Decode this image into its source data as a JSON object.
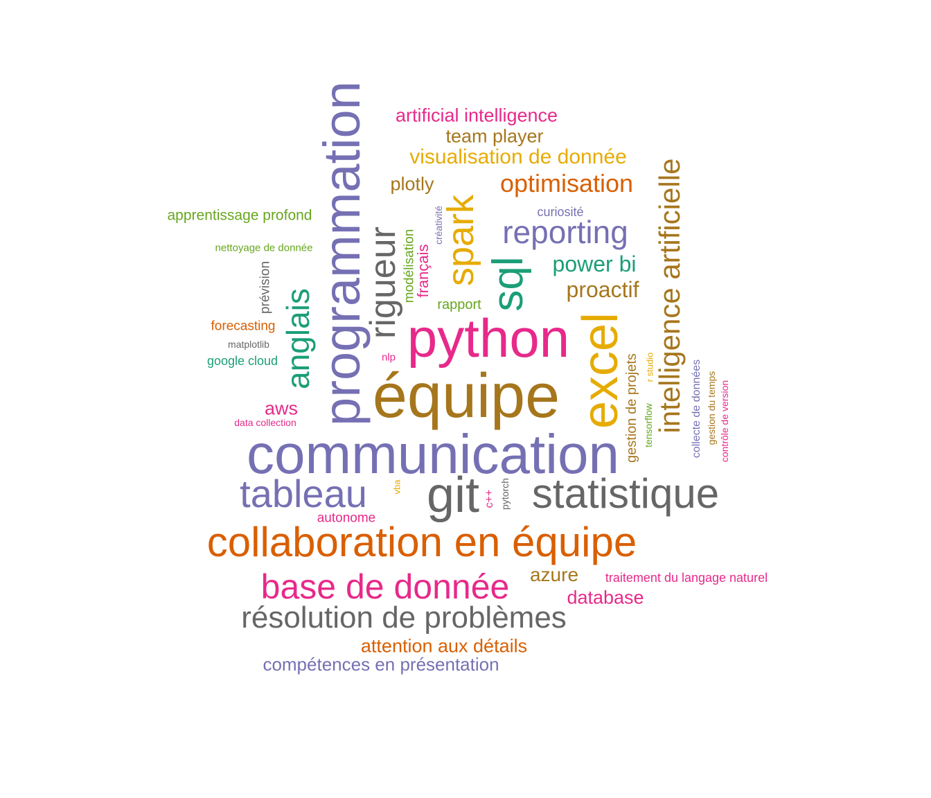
{
  "word_cloud": {
    "words": [
      {
        "text": "communication",
        "color": "#7570b3",
        "weight": 1.0
      },
      {
        "text": "équipe",
        "color": "#a6761d",
        "weight": 1.0
      },
      {
        "text": "python",
        "color": "#e7298a",
        "weight": 0.9
      },
      {
        "text": "programmation",
        "color": "#7570b3",
        "weight": 0.85
      },
      {
        "text": "collaboration en équipe",
        "color": "#d95f02",
        "weight": 0.8
      },
      {
        "text": "statistique",
        "color": "#666666",
        "weight": 0.75
      },
      {
        "text": "git",
        "color": "#666666",
        "weight": 0.85
      },
      {
        "text": "excel",
        "color": "#e6ab02",
        "weight": 0.8
      },
      {
        "text": "tableau",
        "color": "#7570b3",
        "weight": 0.7
      },
      {
        "text": "base de donnée",
        "color": "#e7298a",
        "weight": 0.65
      },
      {
        "text": "résolution de problèmes",
        "color": "#666666",
        "weight": 0.55
      },
      {
        "text": "intelligence artificielle",
        "color": "#a6761d",
        "weight": 0.55
      },
      {
        "text": "rigueur",
        "color": "#666666",
        "weight": 0.6
      },
      {
        "text": "sql",
        "color": "#1b9e77",
        "weight": 0.7
      },
      {
        "text": "spark",
        "color": "#e6ab02",
        "weight": 0.65
      },
      {
        "text": "anglais",
        "color": "#1b9e77",
        "weight": 0.55
      },
      {
        "text": "reporting",
        "color": "#7570b3",
        "weight": 0.5
      },
      {
        "text": "optimisation",
        "color": "#d95f02",
        "weight": 0.4
      },
      {
        "text": "power bi",
        "color": "#1b9e77",
        "weight": 0.35
      },
      {
        "text": "proactif",
        "color": "#a6761d",
        "weight": 0.35
      },
      {
        "text": "visualisation de donnée",
        "color": "#e6ab02",
        "weight": 0.3
      },
      {
        "text": "artificial intelligence",
        "color": "#e7298a",
        "weight": 0.3
      },
      {
        "text": "team player",
        "color": "#a6761d",
        "weight": 0.3
      },
      {
        "text": "plotly",
        "color": "#a6761d",
        "weight": 0.3
      },
      {
        "text": "azure",
        "color": "#a6761d",
        "weight": 0.3
      },
      {
        "text": "database",
        "color": "#e7298a",
        "weight": 0.3
      },
      {
        "text": "attention aux détails",
        "color": "#d95f02",
        "weight": 0.28
      },
      {
        "text": "compétences en présentation",
        "color": "#7570b3",
        "weight": 0.28
      },
      {
        "text": "aws",
        "color": "#e7298a",
        "weight": 0.3
      },
      {
        "text": "gestion de projets",
        "color": "#a6761d",
        "weight": 0.2
      },
      {
        "text": "apprentissage profond",
        "color": "#66a61e",
        "weight": 0.22
      },
      {
        "text": "rapport",
        "color": "#66a61e",
        "weight": 0.2
      },
      {
        "text": "forecasting",
        "color": "#d95f02",
        "weight": 0.18
      },
      {
        "text": "google cloud",
        "color": "#1b9e77",
        "weight": 0.17
      },
      {
        "text": "modélisation",
        "color": "#66a61e",
        "weight": 0.18
      },
      {
        "text": "français",
        "color": "#e7298a",
        "weight": 0.22
      },
      {
        "text": "autonome",
        "color": "#e7298a",
        "weight": 0.18
      },
      {
        "text": "traitement du langage naturel",
        "color": "#e7298a",
        "weight": 0.18
      },
      {
        "text": "prévision",
        "color": "#666666",
        "weight": 0.18
      },
      {
        "text": "curiosité",
        "color": "#7570b3",
        "weight": 0.16
      },
      {
        "text": "collecte de données",
        "color": "#7570b3",
        "weight": 0.16
      },
      {
        "text": "nettoyage de donnée",
        "color": "#66a61e",
        "weight": 0.14
      },
      {
        "text": "matplotlib",
        "color": "#666666",
        "weight": 0.13
      },
      {
        "text": "nlp",
        "color": "#e7298a",
        "weight": 0.14
      },
      {
        "text": "data collection",
        "color": "#e7298a",
        "weight": 0.13
      },
      {
        "text": "créativité",
        "color": "#7570b3",
        "weight": 0.13
      },
      {
        "text": "gestion du temps",
        "color": "#a6761d",
        "weight": 0.13
      },
      {
        "text": "contrôle de version",
        "color": "#e7298a",
        "weight": 0.13
      },
      {
        "text": "tensorflow",
        "color": "#66a61e",
        "weight": 0.13
      },
      {
        "text": "r studio",
        "color": "#e6ab02",
        "weight": 0.12
      },
      {
        "text": "pytorch",
        "color": "#666666",
        "weight": 0.12
      },
      {
        "text": "c++",
        "color": "#e7298a",
        "weight": 0.13
      },
      {
        "text": "vba",
        "color": "#e6ab02",
        "weight": 0.12
      }
    ]
  }
}
